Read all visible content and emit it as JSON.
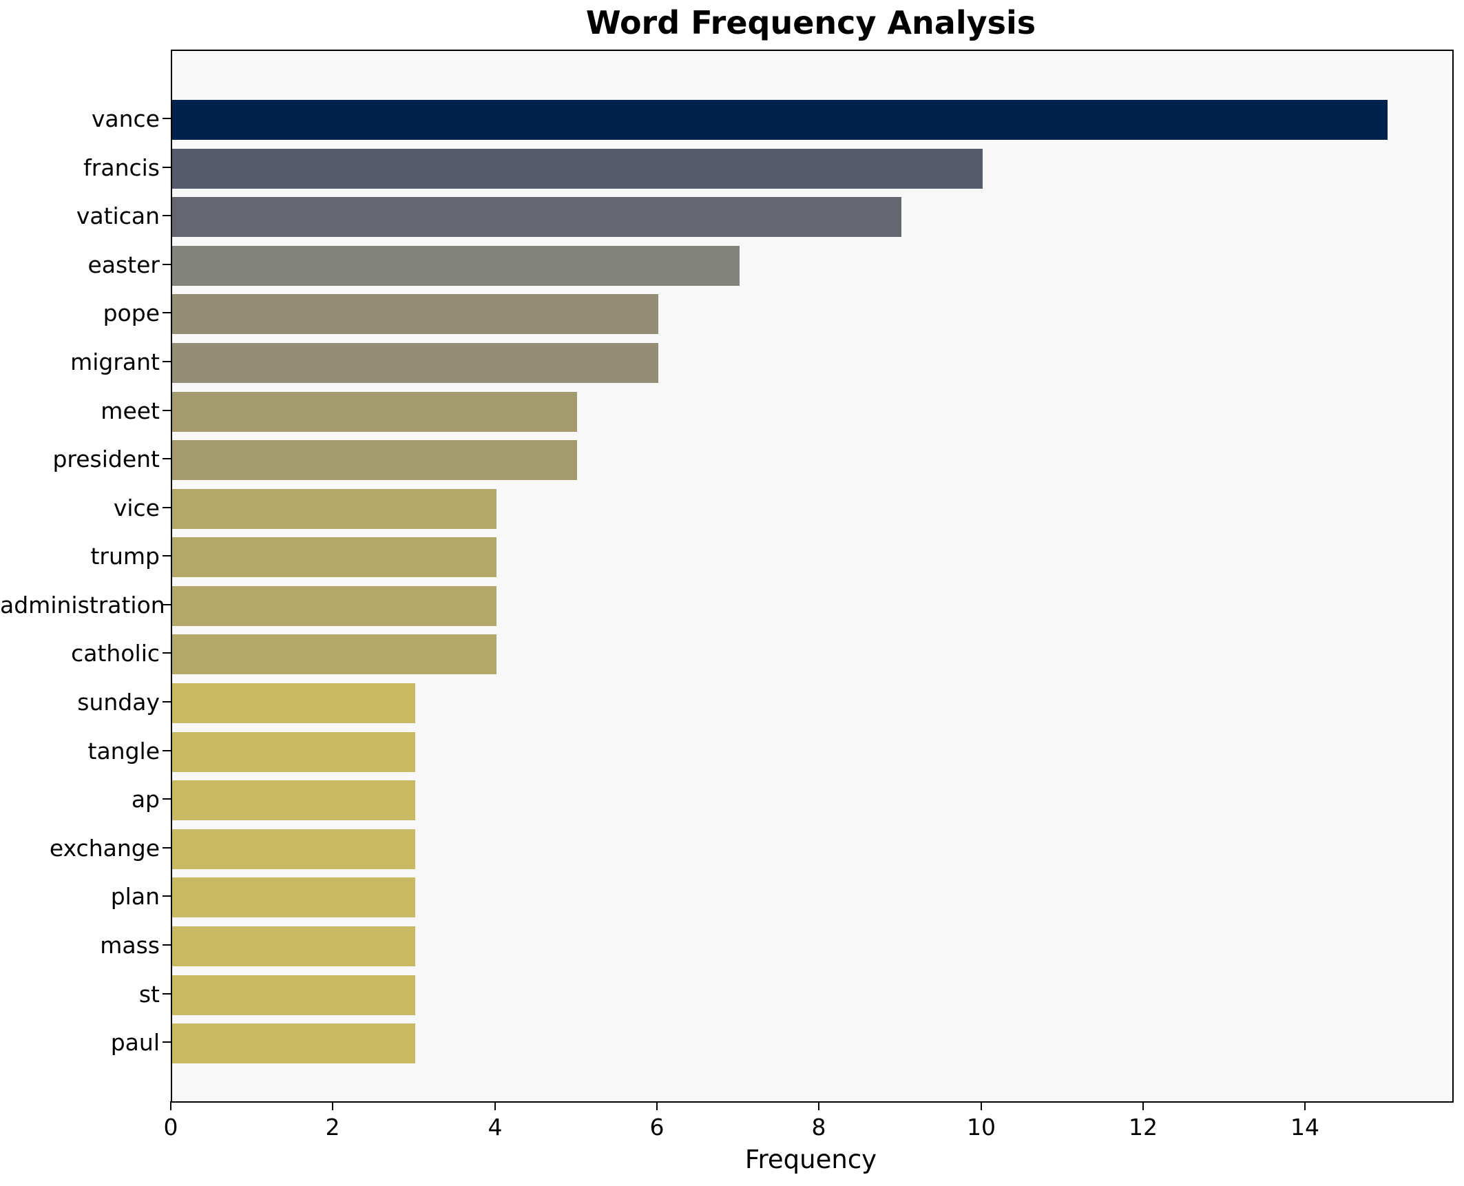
{
  "chart_data": {
    "type": "bar",
    "orientation": "horizontal",
    "title": "Word Frequency Analysis",
    "xlabel": "Frequency",
    "ylabel": "",
    "categories": [
      "vance",
      "francis",
      "vatican",
      "easter",
      "pope",
      "migrant",
      "meet",
      "president",
      "vice",
      "trump",
      "administration",
      "catholic",
      "sunday",
      "tangle",
      "ap",
      "exchange",
      "plan",
      "mass",
      "st",
      "paul"
    ],
    "values": [
      15,
      10,
      9,
      7,
      6,
      6,
      5,
      5,
      4,
      4,
      4,
      4,
      3,
      3,
      3,
      3,
      3,
      3,
      3,
      3
    ],
    "bar_colors": [
      "#00234e",
      "#575b6e",
      "#646670",
      "#82837a",
      "#948e77",
      "#948e77",
      "#a39a6e",
      "#a39a6e",
      "#b3a868",
      "#b3a868",
      "#b3a868",
      "#b3a868",
      "#c9b962",
      "#c9b962",
      "#c9b962",
      "#c9b962",
      "#c9b962",
      "#c9b962",
      "#c9b962",
      "#c9b962"
    ],
    "xlim": [
      0,
      15.8
    ],
    "xticks": [
      0,
      2,
      4,
      6,
      8,
      10,
      12,
      14
    ],
    "grid": false,
    "legend_position": "none",
    "plot_background": "#f8f8f8",
    "figure_background": "#ffffff",
    "bar_color_low": "#c9b962",
    "bar_color_high": "#00234e"
  }
}
